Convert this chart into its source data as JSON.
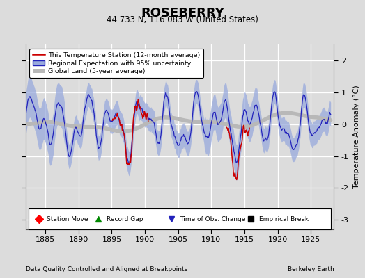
{
  "title": "ROSEBERRY",
  "subtitle": "44.733 N, 116.083 W (United States)",
  "footer_left": "Data Quality Controlled and Aligned at Breakpoints",
  "footer_right": "Berkeley Earth",
  "xlim": [
    1882.0,
    1928.5
  ],
  "ylim": [
    -3.3,
    2.5
  ],
  "yticks": [
    -3,
    -2,
    -1,
    0,
    1,
    2
  ],
  "xticks": [
    1885,
    1890,
    1895,
    1900,
    1905,
    1910,
    1915,
    1920,
    1925
  ],
  "ylabel": "Temperature Anomaly (°C)",
  "bg_color": "#dcdcdc",
  "plot_bg_color": "#dcdcdc",
  "station_color": "#cc0000",
  "regional_color": "#2222bb",
  "regional_fill_color": "#99aadd",
  "global_color": "#b8b8b8",
  "legend_labels": [
    "This Temperature Station (12-month average)",
    "Regional Expectation with 95% uncertainty",
    "Global Land (5-year average)"
  ],
  "seed": 42
}
